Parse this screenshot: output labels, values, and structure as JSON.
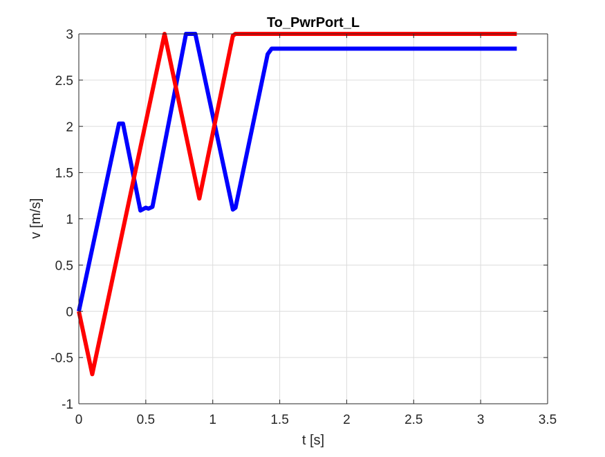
{
  "chart_data": {
    "type": "line",
    "title": "To_PwrPort_L",
    "xlabel": "t [s]",
    "ylabel": "v [m/s]",
    "xlim": [
      0,
      3.5
    ],
    "ylim": [
      -1,
      3
    ],
    "xticks": [
      0,
      0.5,
      1,
      1.5,
      2,
      2.5,
      3,
      3.5
    ],
    "yticks": [
      -1,
      -0.5,
      0,
      0.5,
      1,
      1.5,
      2,
      2.5,
      3
    ],
    "xtick_labels": [
      "0",
      "0.5",
      "1",
      "1.5",
      "2",
      "2.5",
      "3",
      "3.5"
    ],
    "ytick_labels": [
      "-1",
      "-0.5",
      "0",
      "0.5",
      "1",
      "1.5",
      "2",
      "2.5",
      "3"
    ],
    "grid": true,
    "legend": "none",
    "series": [
      {
        "color": "#0000ff",
        "x": [
          0,
          0.3,
          0.33,
          0.46,
          0.5,
          0.52,
          0.55,
          0.8,
          0.82,
          0.87,
          0.88,
          1.15,
          1.17,
          1.41,
          1.44,
          3.27
        ],
        "y": [
          0,
          2.03,
          2.03,
          1.09,
          1.12,
          1.11,
          1.13,
          3.0,
          3.0,
          3.0,
          2.93,
          1.1,
          1.12,
          2.78,
          2.84,
          2.84
        ]
      },
      {
        "color": "#ff0000",
        "x": [
          0,
          0.1,
          0.64,
          0.9,
          1.15,
          1.17,
          3.27
        ],
        "y": [
          0,
          -0.68,
          3.0,
          1.22,
          2.98,
          3.0,
          3.0
        ]
      }
    ]
  }
}
